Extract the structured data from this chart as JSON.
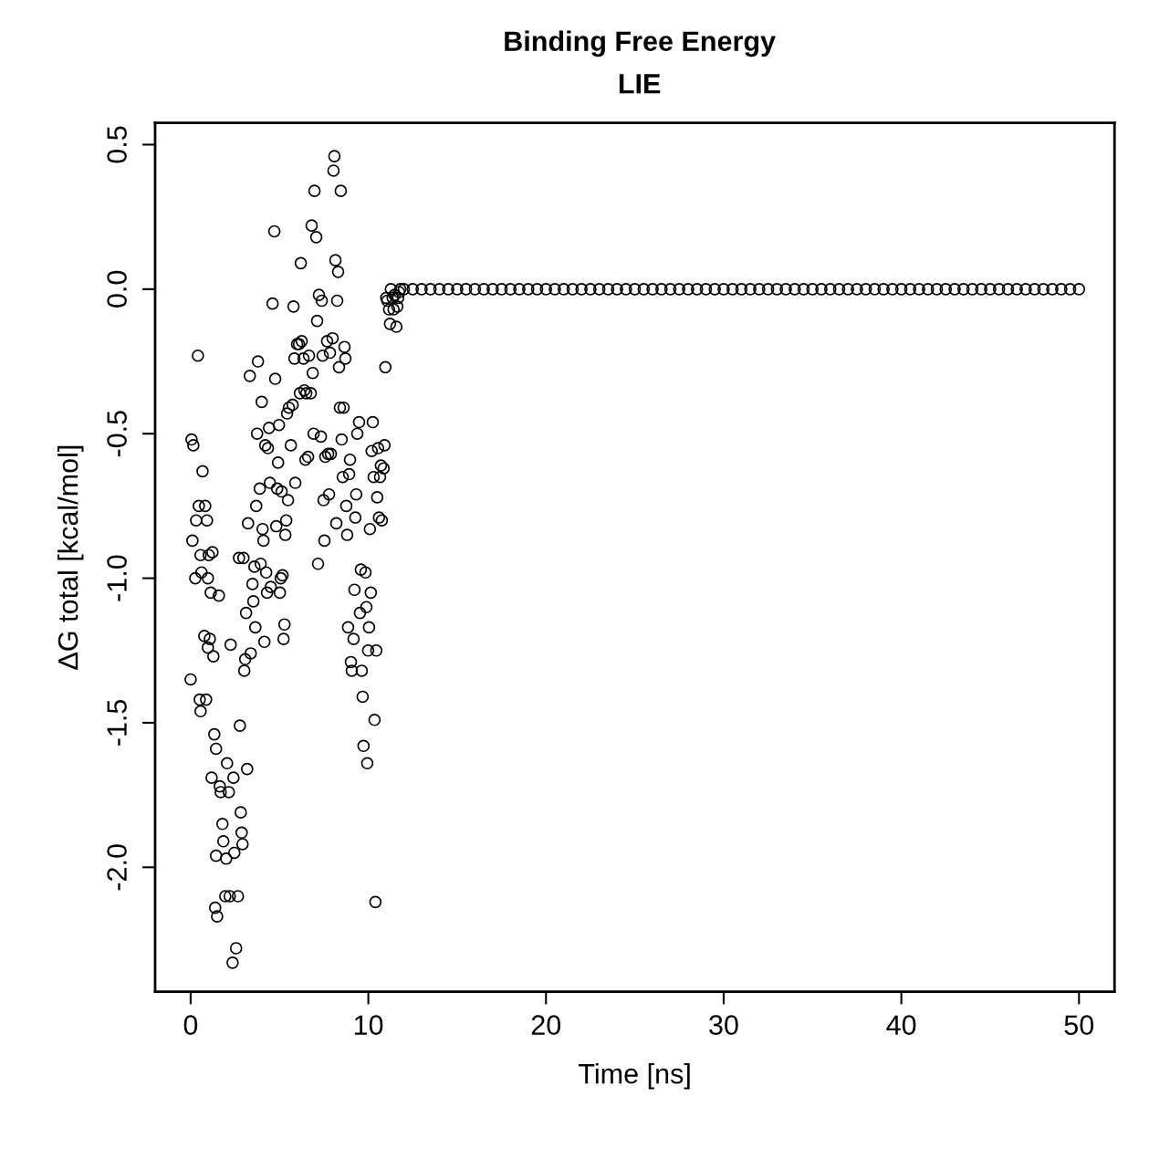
{
  "chart_data": {
    "type": "scatter",
    "title": "Binding Free Energy",
    "subtitle": "LIE",
    "xlabel": "Time [ns]",
    "ylabel": "ΔG total [kcal/mol]",
    "xlim": [
      -2,
      52
    ],
    "ylim": [
      -2.43,
      0.575
    ],
    "xticks": [
      0,
      10,
      20,
      30,
      40,
      50
    ],
    "yticks": [
      {
        "value": -2.0,
        "label": "-2.0"
      },
      {
        "value": -1.5,
        "label": "-1.5"
      },
      {
        "value": -1.0,
        "label": "-1.0"
      },
      {
        "value": -0.5,
        "label": "-0.5"
      },
      {
        "value": 0.0,
        "label": "0.0"
      },
      {
        "value": 0.5,
        "label": "0.5"
      }
    ],
    "grid": false,
    "marker": "circle",
    "series": [
      {
        "color": "#000000",
        "x": [
          0.0,
          0.05,
          0.15,
          0.1,
          0.26,
          0.41,
          0.31,
          0.46,
          0.56,
          0.67,
          0.61,
          0.77,
          0.51,
          0.56,
          0.87,
          0.82,
          0.92,
          0.97,
          1.02,
          0.97,
          1.13,
          1.23,
          1.18,
          1.28,
          1.08,
          1.33,
          1.43,
          1.38,
          1.49,
          1.43,
          1.59,
          1.64,
          1.69,
          1.79,
          1.84,
          1.95,
          2.0,
          2.05,
          2.15,
          2.2,
          2.25,
          2.36,
          2.41,
          2.46,
          2.56,
          2.66,
          2.72,
          2.77,
          2.82,
          2.87,
          2.92,
          2.97,
          3.02,
          3.07,
          3.12,
          3.18,
          3.23,
          3.33,
          3.38,
          3.48,
          3.53,
          3.59,
          3.64,
          3.69,
          3.74,
          3.79,
          3.89,
          3.94,
          4.0,
          4.05,
          4.1,
          4.15,
          4.2,
          4.25,
          4.3,
          4.35,
          4.41,
          4.46,
          4.51,
          4.61,
          4.71,
          4.76,
          4.82,
          4.87,
          4.92,
          4.97,
          5.02,
          5.07,
          5.12,
          5.17,
          5.23,
          5.28,
          5.33,
          5.38,
          5.43,
          5.48,
          5.53,
          5.64,
          5.74,
          5.79,
          5.84,
          5.89,
          5.99,
          6.1,
          6.15,
          6.2,
          6.25,
          6.35,
          6.4,
          6.46,
          6.51,
          6.61,
          6.66,
          6.76,
          6.81,
          6.87,
          6.92,
          6.97,
          7.07,
          7.12,
          7.17,
          7.22,
          7.33,
          7.38,
          7.43,
          7.48,
          7.53,
          7.58,
          7.68,
          7.74,
          7.79,
          7.84,
          7.89,
          7.99,
          8.04,
          8.09,
          8.15,
          8.2,
          8.25,
          8.3,
          8.35,
          8.4,
          8.45,
          8.5,
          8.56,
          8.61,
          8.66,
          8.71,
          8.76,
          8.81,
          8.86,
          8.92,
          8.97,
          9.02,
          9.07,
          9.17,
          9.22,
          9.27,
          9.32,
          9.38,
          9.48,
          9.53,
          9.58,
          9.63,
          9.68,
          9.73,
          9.84,
          9.89,
          9.94,
          9.99,
          10.04,
          10.09,
          10.14,
          10.19,
          10.25,
          10.3,
          10.35,
          10.4,
          10.45,
          10.5,
          10.55,
          10.6,
          10.66,
          10.71,
          10.76,
          10.86,
          10.91,
          10.96,
          11.01,
          11.07,
          11.17,
          11.22,
          11.27,
          11.37,
          11.42,
          11.48,
          11.58,
          11.63,
          11.68,
          11.73,
          11.8,
          12.0,
          12.5,
          13.0,
          13.5,
          14.0,
          14.5,
          15.0,
          15.5,
          16.0,
          16.5,
          17.0,
          17.5,
          18.0,
          18.5,
          19.0,
          19.5,
          20.0,
          20.5,
          21.0,
          21.5,
          22.0,
          22.5,
          23.0,
          23.5,
          24.0,
          24.5,
          25.0,
          25.5,
          26.0,
          26.5,
          27.0,
          27.5,
          28.0,
          28.5,
          29.0,
          29.5,
          30.0,
          30.5,
          31.0,
          31.5,
          32.0,
          32.5,
          33.0,
          33.5,
          34.0,
          34.5,
          35.0,
          35.5,
          36.0,
          36.5,
          37.0,
          37.5,
          38.0,
          38.5,
          39.0,
          39.5,
          40.0,
          40.5,
          41.0,
          41.5,
          42.0,
          42.5,
          43.0,
          43.5,
          44.0,
          44.5,
          45.0,
          45.5,
          46.0,
          46.5,
          47.0,
          47.5,
          48.0,
          48.5,
          49.0,
          49.5,
          50.0
        ],
        "values": [
          -1.35,
          -0.52,
          -0.54,
          -0.87,
          -1.0,
          -0.23,
          -0.8,
          -0.75,
          -0.92,
          -0.63,
          -0.98,
          -1.2,
          -1.42,
          -1.46,
          -1.42,
          -0.75,
          -0.8,
          -1.24,
          -0.92,
          -1.0,
          -1.05,
          -0.91,
          -1.69,
          -1.27,
          -1.21,
          -1.54,
          -1.59,
          -2.14,
          -2.17,
          -1.96,
          -1.06,
          -1.72,
          -1.74,
          -1.85,
          -1.91,
          -2.1,
          -1.97,
          -1.64,
          -1.74,
          -2.1,
          -1.23,
          -2.33,
          -1.69,
          -1.95,
          -2.28,
          -2.1,
          -0.93,
          -1.51,
          -1.81,
          -1.88,
          -1.92,
          -0.93,
          -1.32,
          -1.28,
          -1.12,
          -1.66,
          -0.81,
          -0.3,
          -1.26,
          -1.02,
          -1.08,
          -0.96,
          -1.17,
          -0.75,
          -0.5,
          -0.25,
          -0.69,
          -0.95,
          -0.39,
          -0.83,
          -0.87,
          -1.22,
          -0.54,
          -0.98,
          -1.05,
          -0.55,
          -0.48,
          -0.67,
          -1.03,
          -0.05,
          0.2,
          -0.31,
          -0.82,
          -0.69,
          -0.6,
          -0.47,
          -1.05,
          -1.0,
          -0.7,
          -0.99,
          -1.21,
          -1.16,
          -0.85,
          -0.8,
          -0.43,
          -0.73,
          -0.41,
          -0.54,
          -0.4,
          -0.06,
          -0.24,
          -0.67,
          -0.19,
          -0.19,
          -0.36,
          0.09,
          -0.18,
          -0.24,
          -0.35,
          -0.59,
          -0.36,
          -0.58,
          -0.23,
          -0.36,
          0.22,
          -0.29,
          -0.5,
          0.34,
          0.18,
          -0.11,
          -0.95,
          -0.02,
          -0.51,
          -0.04,
          -0.23,
          -0.73,
          -0.87,
          -0.58,
          -0.18,
          -0.57,
          -0.71,
          -0.22,
          -0.57,
          -0.17,
          0.41,
          0.46,
          0.1,
          -0.81,
          -0.04,
          0.06,
          -0.27,
          -0.41,
          0.34,
          -0.52,
          -0.65,
          -0.41,
          -0.2,
          -0.24,
          -0.75,
          -0.85,
          -1.17,
          -0.64,
          -0.59,
          -1.29,
          -1.32,
          -1.21,
          -1.04,
          -0.79,
          -0.71,
          -0.5,
          -0.46,
          -1.12,
          -0.97,
          -1.32,
          -1.41,
          -1.58,
          -0.98,
          -1.1,
          -1.64,
          -1.25,
          -1.17,
          -0.83,
          -1.05,
          -0.56,
          -0.46,
          -0.65,
          -1.49,
          -2.12,
          -1.25,
          -0.72,
          -0.55,
          -0.79,
          -0.65,
          -0.61,
          -0.8,
          -0.62,
          -0.54,
          -0.27,
          -0.03,
          -0.04,
          -0.07,
          -0.12,
          0.0,
          -0.03,
          -0.07,
          -0.02,
          -0.13,
          -0.06,
          -0.03,
          -0.01,
          0,
          0,
          0,
          0,
          0,
          0,
          0,
          0,
          0,
          0,
          0,
          0,
          0,
          0,
          0,
          0,
          0,
          0,
          0,
          0,
          0,
          0,
          0,
          0,
          0,
          0,
          0,
          0,
          0,
          0,
          0,
          0,
          0,
          0,
          0,
          0,
          0,
          0,
          0,
          0,
          0,
          0,
          0,
          0,
          0,
          0,
          0,
          0,
          0,
          0,
          0,
          0,
          0,
          0,
          0,
          0,
          0,
          0,
          0,
          0,
          0,
          0,
          0,
          0,
          0,
          0,
          0,
          0,
          0,
          0,
          0,
          0,
          0,
          0,
          0,
          0,
          0,
          0
        ]
      }
    ]
  }
}
